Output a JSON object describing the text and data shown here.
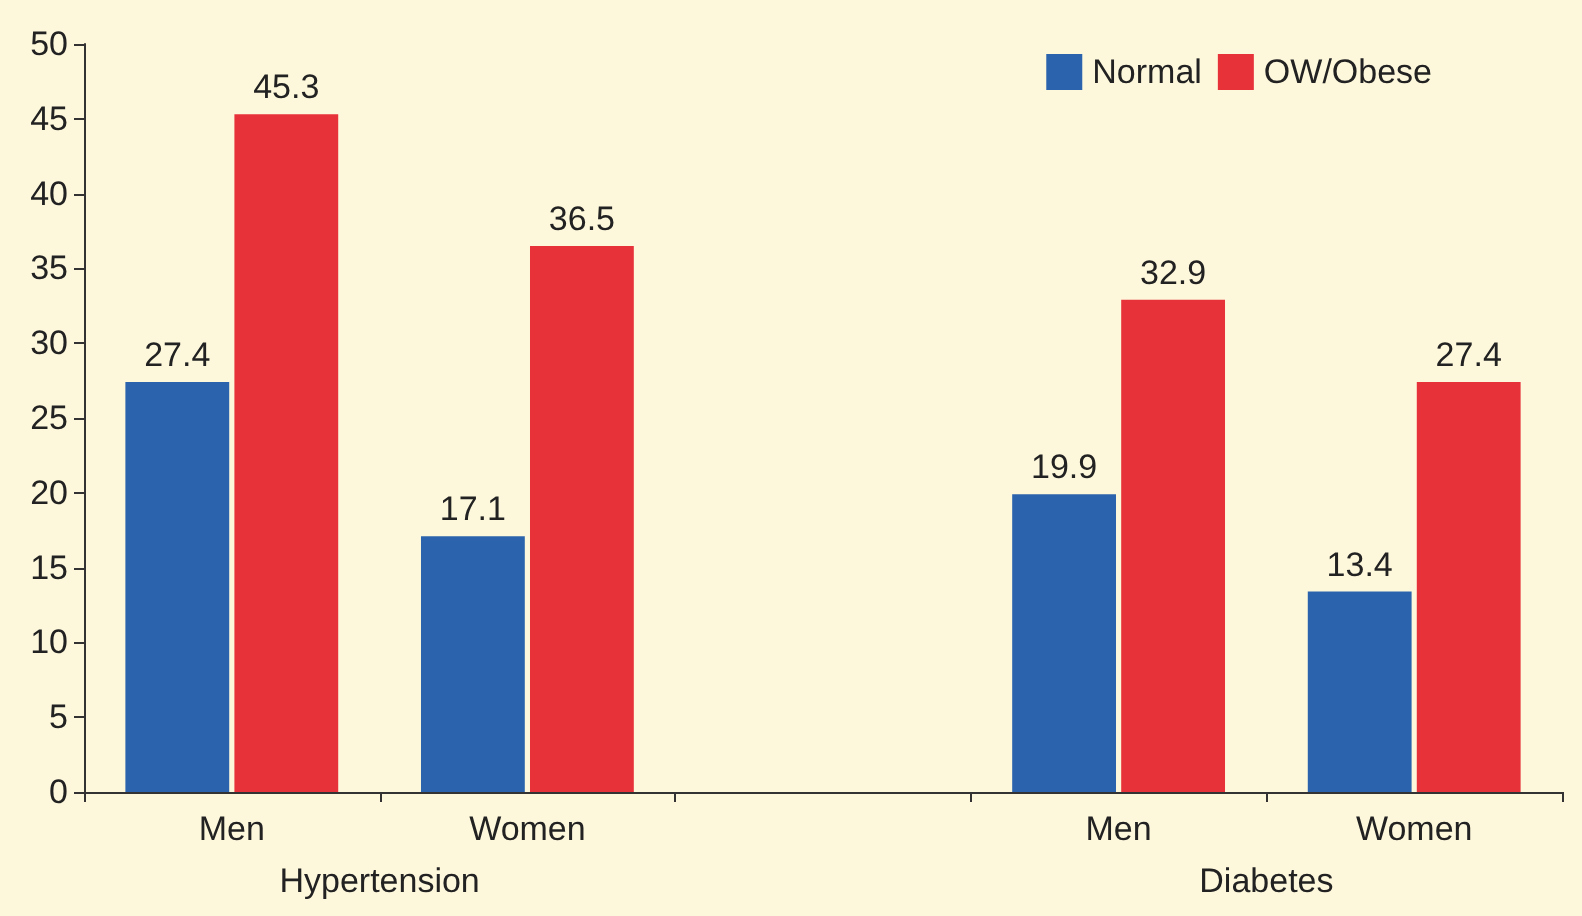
{
  "chart_data": {
    "type": "bar",
    "categories": [
      "Men",
      "Women",
      null,
      "Men",
      "Women"
    ],
    "series": [
      {
        "name": "Normal",
        "color": "#2b64ad",
        "values": [
          27.4,
          17.1,
          null,
          19.9,
          13.4
        ]
      },
      {
        "name": "OW/Obese",
        "color": "#e8323a",
        "values": [
          45.3,
          36.5,
          null,
          32.9,
          27.4
        ]
      }
    ],
    "ylim": [
      0,
      50
    ],
    "yticks": [
      0,
      5,
      10,
      15,
      20,
      25,
      30,
      35,
      40,
      45,
      50
    ],
    "data_labels": true,
    "legend": "top right",
    "grid": false,
    "annotations": [
      "Hypertension",
      "Diabetes"
    ]
  }
}
